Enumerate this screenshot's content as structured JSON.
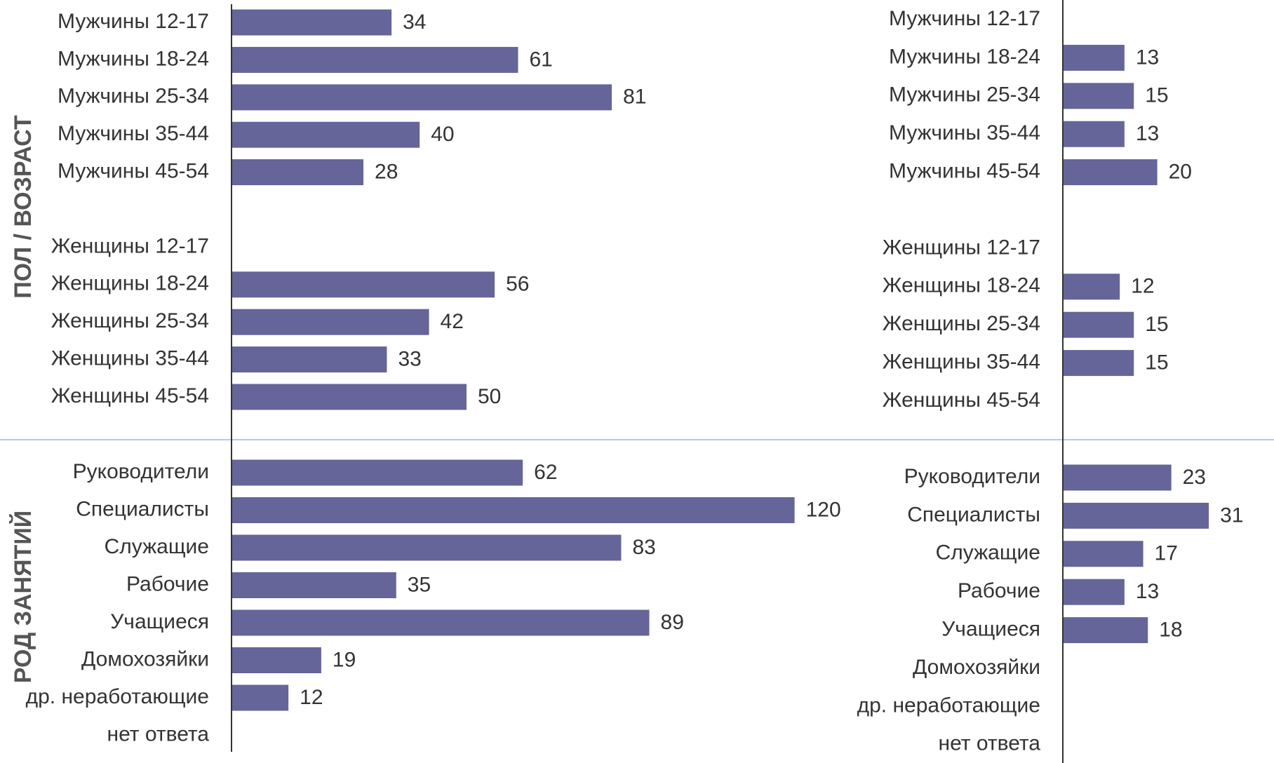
{
  "chart_data": [
    {
      "type": "bar",
      "color": "#65659a",
      "groups": [
        {
          "label": "ПОЛ / ВОЗРАСТ",
          "categories": [
            "Мужчины 12-17",
            "Мужчины 18-24",
            "Мужчины 25-34",
            "Мужчины 35-44",
            "Мужчины 45-54",
            null,
            "Женщины 12-17",
            "Женщины 18-24",
            "Женщины 25-34",
            "Женщины 35-44",
            "Женщины 45-54"
          ],
          "values": [
            34,
            61,
            81,
            40,
            28,
            null,
            null,
            56,
            42,
            33,
            50
          ]
        },
        {
          "label": "РОД ЗАНЯТИЙ",
          "categories": [
            "Руководители",
            "Специалисты",
            "Служащие",
            "Рабочие",
            "Учащиеся",
            "Домохозяйки",
            "др. неработающие",
            "нет ответа"
          ],
          "values": [
            62,
            120,
            83,
            35,
            89,
            19,
            12,
            null
          ]
        }
      ]
    },
    {
      "type": "bar",
      "color": "#65659a",
      "groups": [
        {
          "categories": [
            "Мужчины 12-17",
            "Мужчины 18-24",
            "Мужчины 25-34",
            "Мужчины 35-44",
            "Мужчины 45-54",
            null,
            "Женщины 12-17",
            "Женщины 18-24",
            "Женщины 25-34",
            "Женщины 35-44",
            "Женщины 45-54"
          ],
          "values": [
            null,
            13,
            15,
            13,
            20,
            null,
            null,
            12,
            15,
            15,
            null
          ]
        },
        {
          "categories": [
            "Руководители",
            "Специалисты",
            "Служащие",
            "Рабочие",
            "Учащиеся",
            "Домохозяйки",
            "др. неработающие",
            "нет ответа"
          ],
          "values": [
            23,
            31,
            17,
            13,
            18,
            null,
            null,
            null
          ]
        }
      ]
    }
  ]
}
